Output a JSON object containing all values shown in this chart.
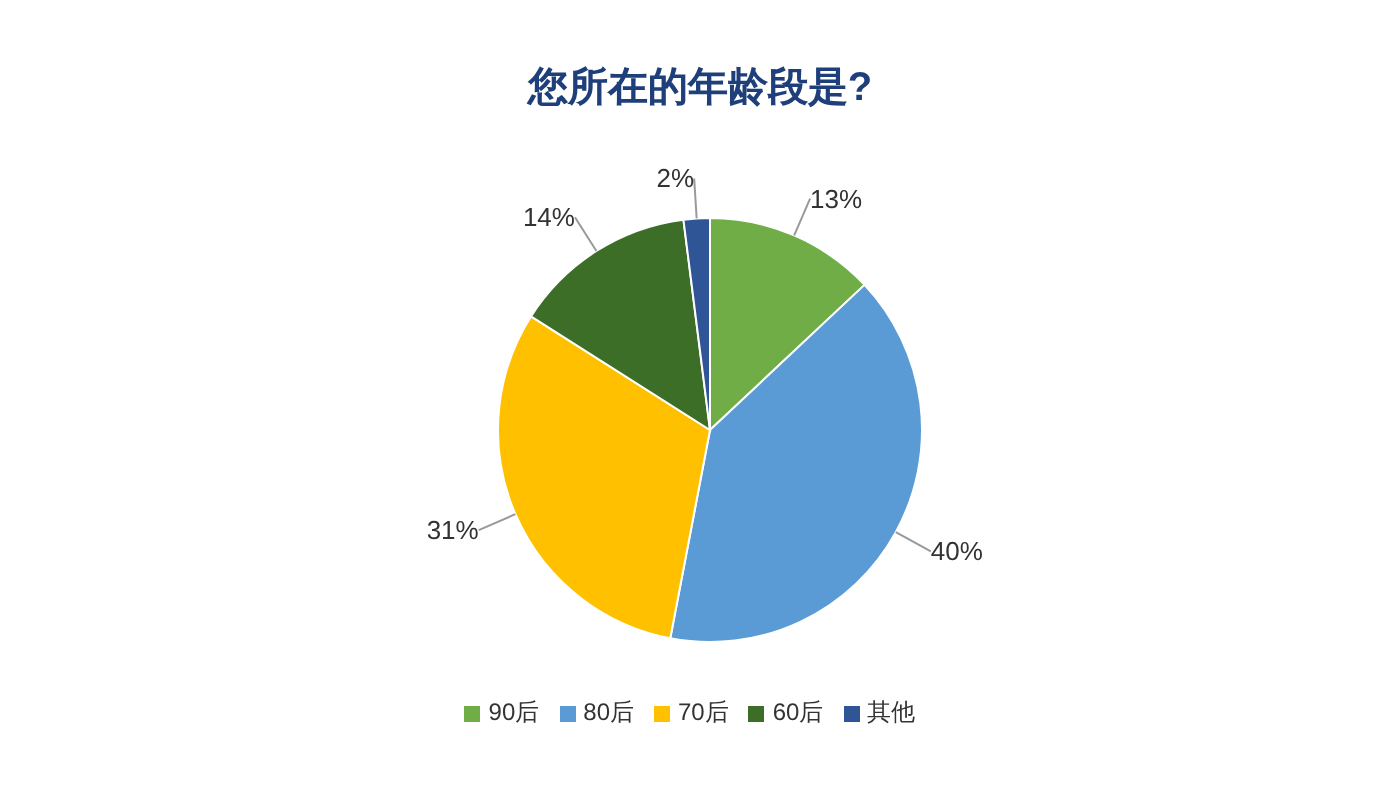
{
  "chart_data": {
    "type": "pie",
    "title": "您所在的年龄段是?",
    "categories": [
      "90后",
      "80后",
      "70后",
      "60后",
      "其他"
    ],
    "values": [
      13,
      40,
      31,
      14,
      2
    ],
    "value_labels": [
      "13%",
      "40%",
      "31%",
      "14%",
      "2%"
    ],
    "colors": [
      "#70ad47",
      "#5b9bd5",
      "#ffc000",
      "#3c6e28",
      "#2f5597"
    ],
    "legend": "bottom"
  }
}
